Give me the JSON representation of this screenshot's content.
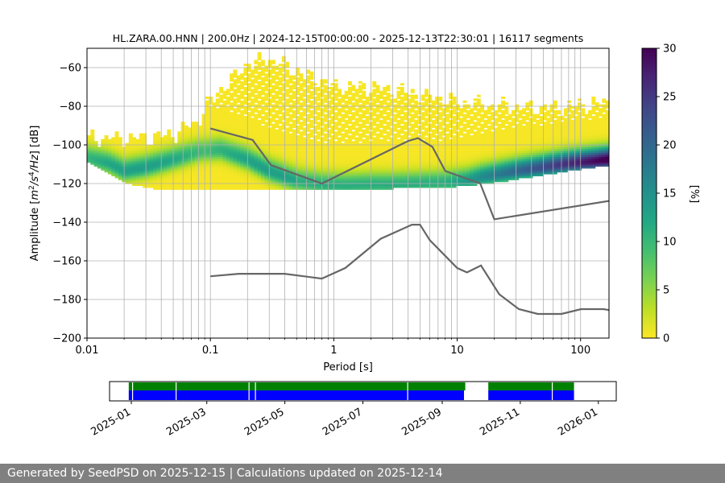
{
  "chart_data": {
    "type": "heatmap",
    "title": "HL.ZARA.00.HNN | 200.0Hz | 2024-12-15T00:00:00 - 2025-12-13T22:30:01 | 16117 segments",
    "xlabel": "Period [s]",
    "ylabel_parts": [
      "Amplitude [",
      "m",
      "2",
      "/",
      "s",
      "4",
      "/",
      "Hz",
      "] [dB]"
    ],
    "x_scale": "log",
    "xlim": [
      0.01,
      170
    ],
    "ylim": [
      -200,
      -50
    ],
    "x_ticks": [
      0.01,
      0.1,
      1,
      10,
      100
    ],
    "x_tick_labels": [
      "0.01",
      "0.1",
      "1",
      "10",
      "100"
    ],
    "y_ticks": [
      -200,
      -180,
      -160,
      -140,
      -120,
      -100,
      -80,
      -60
    ],
    "y_tick_labels": [
      "−200",
      "−180",
      "−160",
      "−140",
      "−120",
      "−100",
      "−80",
      "−60"
    ],
    "grid": true,
    "colorbar": {
      "label": "[%]",
      "range": [
        0,
        30
      ],
      "ticks": [
        0,
        5,
        10,
        15,
        20,
        25,
        30
      ],
      "tick_labels": [
        "0",
        "5",
        "10",
        "15",
        "20",
        "25",
        "30"
      ],
      "colormap": "viridis_r"
    },
    "mode": {
      "period": [
        0.01,
        0.015,
        0.02,
        0.03,
        0.05,
        0.08,
        0.12,
        0.2,
        0.3,
        0.5,
        0.8,
        1.2,
        2,
        3,
        5,
        8,
        12,
        16,
        20,
        30,
        50,
        80,
        120,
        170
      ],
      "db": [
        -107,
        -110,
        -114,
        -112,
        -108,
        -104,
        -103,
        -108,
        -114,
        -119,
        -121,
        -121.5,
        -121,
        -121,
        -120.5,
        -120,
        -119,
        -117,
        -116,
        -114,
        -112,
        -110,
        -109,
        -108
      ]
    },
    "envelope_lower": {
      "period": [
        0.01,
        0.02,
        0.04,
        0.1,
        0.3,
        1,
        3,
        10,
        20,
        40,
        100,
        170
      ],
      "db": [
        -109,
        -120,
        -124,
        -123,
        -123,
        -123,
        -123,
        -122,
        -120,
        -117,
        -113,
        -111
      ]
    },
    "envelope_upper": {
      "period": [
        0.01,
        0.03,
        0.05,
        0.08,
        0.1,
        0.15,
        0.2,
        0.3,
        0.5,
        1,
        2,
        5,
        10,
        20,
        50,
        100,
        170
      ],
      "db": [
        -97,
        -97,
        -95,
        -88,
        -77,
        -66,
        -58,
        -56,
        -62,
        -70,
        -70,
        -74,
        -78,
        -80,
        -81,
        -80,
        -78
      ]
    },
    "reference_curves": [
      {
        "period": [
          0.1,
          0.22,
          0.31,
          0.8,
          4.0,
          4.8,
          6.3,
          8.0,
          15.4,
          20.0,
          170
        ],
        "db": [
          -91.5,
          -97.4,
          -110.5,
          -120.0,
          -98.0,
          -96.5,
          -101.0,
          -113.5,
          -120.0,
          -138.5,
          -129.0
        ]
      },
      {
        "period": [
          0.1,
          0.17,
          0.4,
          0.8,
          1.24,
          2.4,
          4.3,
          5.0,
          6.0,
          10.0,
          12.0,
          15.6,
          21.9,
          31.6,
          45.0,
          70.0,
          101.0,
          154.0,
          170
        ],
        "db": [
          -168.0,
          -166.7,
          -166.7,
          -169.2,
          -163.7,
          -148.6,
          -141.3,
          -141.3,
          -149.3,
          -163.7,
          -166.0,
          -162.4,
          -177.3,
          -185.0,
          -187.5,
          -187.5,
          -185.0,
          -185.0,
          -185.5
        ]
      }
    ],
    "timeline": {
      "range": [
        "2024-12-15",
        "2026-01-15"
      ],
      "tick_labels": [
        "2025-01",
        "2025-03",
        "2025-05",
        "2025-07",
        "2025-09",
        "2025-11",
        "2026-01"
      ],
      "tick_dates": [
        "2025-01-01",
        "2025-03-01",
        "2025-05-01",
        "2025-07-01",
        "2025-09-01",
        "2025-11-01",
        "2026-01-01"
      ],
      "data_spans": [
        [
          "2024-12-30",
          "2025-09-19"
        ],
        [
          "2025-10-07",
          "2025-12-13"
        ]
      ],
      "processed_spans": [
        [
          "2024-12-30",
          "2025-09-18"
        ],
        [
          "2025-10-07",
          "2025-12-13"
        ]
      ],
      "gap_marks": [
        "2025-01-02",
        "2025-02-05",
        "2025-04-03",
        "2025-04-08",
        "2025-08-05",
        "2025-09-20",
        "2025-09-23",
        "2025-11-26"
      ],
      "colors": {
        "data": "#008000",
        "processed": "#0000ff",
        "gap": "#ffffff"
      }
    },
    "colors": {
      "reference": "#666666",
      "grid": "#b0b0b0",
      "axis": "#000000"
    }
  },
  "footer": {
    "text": "Generated by SeedPSD on 2025-12-15 | Calculations updated on 2025-12-14"
  }
}
